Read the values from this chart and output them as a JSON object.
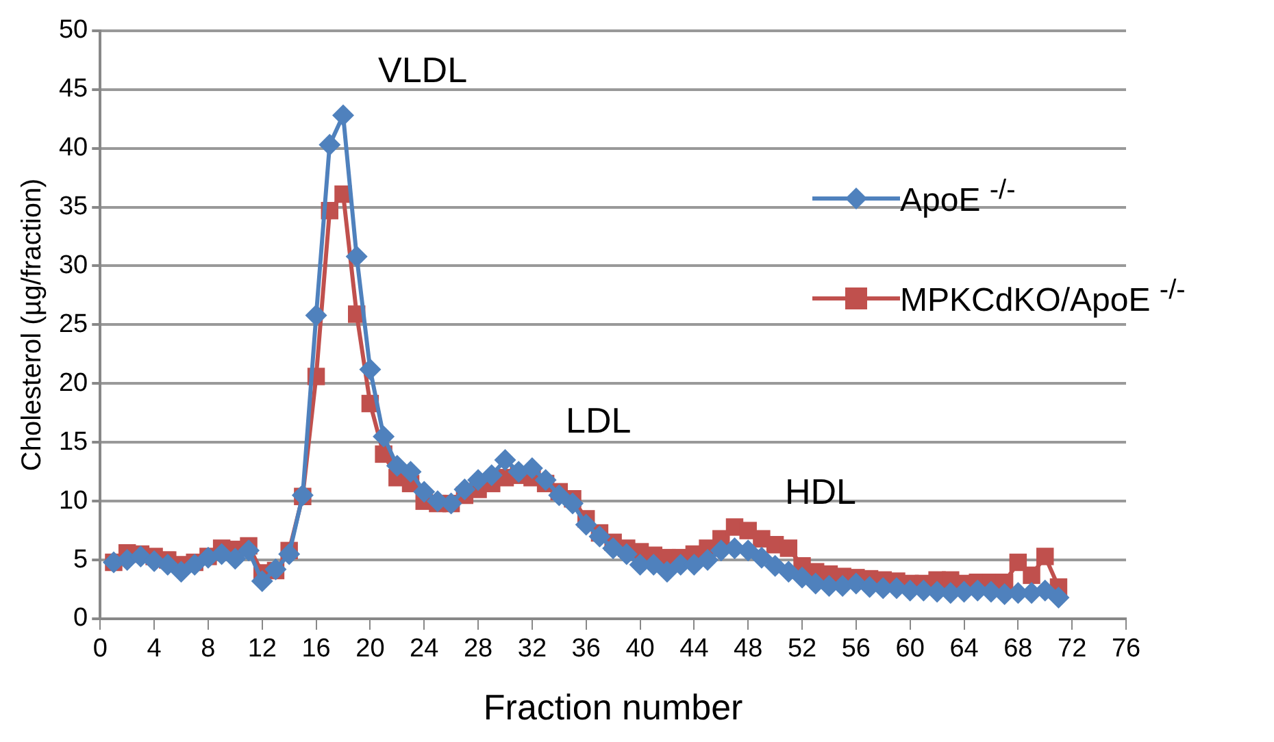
{
  "chart_data": {
    "type": "line",
    "xlabel": "Fraction number",
    "ylabel": "Cholesterol (µg/fraction)",
    "x": [
      1,
      2,
      3,
      4,
      5,
      6,
      7,
      8,
      9,
      10,
      11,
      12,
      13,
      14,
      15,
      16,
      17,
      18,
      19,
      20,
      21,
      22,
      23,
      24,
      25,
      26,
      27,
      28,
      29,
      30,
      31,
      32,
      33,
      34,
      35,
      36,
      37,
      38,
      39,
      40,
      41,
      42,
      43,
      44,
      45,
      46,
      47,
      48,
      49,
      50,
      51,
      52,
      53,
      54,
      55,
      56,
      57,
      58,
      59,
      60,
      61,
      62,
      63,
      64,
      65,
      66,
      67,
      68,
      69,
      70,
      71
    ],
    "series": [
      {
        "name": "ApoE $^{-/-}$",
        "color": "#4f81bd",
        "marker": "diamond",
        "values": [
          4.8,
          5.0,
          5.3,
          4.9,
          4.6,
          4.0,
          4.6,
          5.2,
          5.5,
          5.1,
          5.8,
          3.2,
          4.2,
          5.5,
          10.5,
          25.8,
          40.3,
          42.8,
          30.8,
          21.2,
          15.5,
          13.0,
          12.5,
          10.8,
          10.0,
          9.8,
          11.0,
          11.8,
          12.2,
          13.5,
          12.5,
          12.8,
          11.8,
          10.5,
          9.8,
          8.0,
          7.0,
          6.0,
          5.5,
          4.6,
          4.6,
          4.0,
          4.6,
          4.6,
          5.0,
          5.8,
          6.0,
          5.8,
          5.2,
          4.5,
          4.0,
          3.5,
          3.0,
          2.8,
          2.8,
          3.0,
          2.7,
          2.6,
          2.6,
          2.4,
          2.4,
          2.3,
          2.2,
          2.3,
          2.4,
          2.3,
          2.1,
          2.2,
          2.2,
          2.4,
          1.8
        ]
      },
      {
        "name": "MPKCdKO/ApoE $^{-/-}$",
        "color": "#c0504d",
        "marker": "square",
        "values": [
          4.8,
          5.6,
          5.5,
          5.3,
          5.0,
          4.6,
          4.8,
          5.3,
          6.0,
          5.9,
          6.2,
          3.9,
          4.1,
          5.8,
          10.4,
          20.6,
          34.7,
          36.1,
          25.9,
          18.3,
          14.0,
          12.0,
          11.5,
          10.0,
          9.8,
          9.8,
          10.5,
          11.0,
          11.5,
          12.0,
          12.2,
          12.0,
          11.5,
          10.8,
          10.2,
          8.5,
          7.3,
          6.5,
          6.0,
          5.7,
          5.4,
          5.2,
          5.2,
          5.5,
          6.0,
          6.8,
          7.8,
          7.5,
          6.8,
          6.3,
          6.0,
          4.5,
          4.0,
          3.8,
          3.6,
          3.5,
          3.4,
          3.3,
          3.2,
          3.0,
          3.0,
          3.3,
          3.3,
          3.0,
          3.1,
          3.1,
          3.1,
          4.8,
          3.7,
          5.3,
          2.7
        ]
      }
    ],
    "xlim": [
      0,
      76
    ],
    "xticks": [
      0,
      4,
      8,
      12,
      16,
      20,
      24,
      28,
      32,
      36,
      40,
      44,
      48,
      52,
      56,
      60,
      64,
      68,
      72,
      76
    ],
    "ylim": [
      0,
      50
    ],
    "yticks": [
      0,
      5,
      10,
      15,
      20,
      25,
      30,
      35,
      40,
      45,
      50
    ],
    "grid": "y",
    "legend": "right",
    "line_style": "solid",
    "annotations": [
      "VLDL",
      "LDL",
      "HDL"
    ]
  }
}
